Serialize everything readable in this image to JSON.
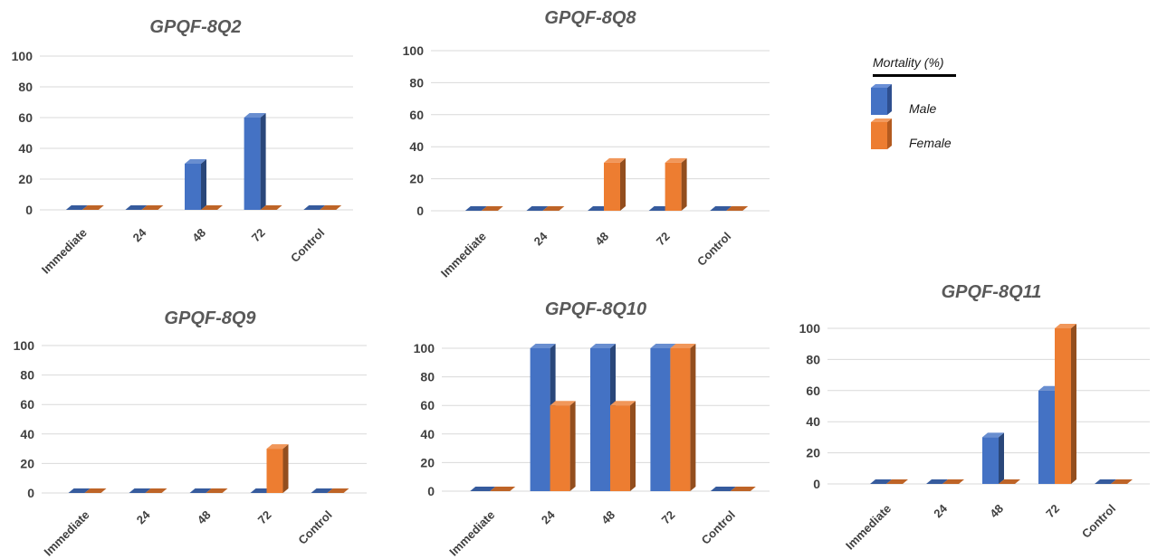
{
  "colors": {
    "male": "#4472C4",
    "female": "#ED7D31"
  },
  "legend": {
    "title": "Mortality (%)",
    "male_label": "Male",
    "female_label": "Female"
  },
  "chart_data": [
    {
      "type": "bar",
      "title": "GPQF-8Q2",
      "categories": [
        "Immediate",
        "24",
        "48",
        "72",
        "Control"
      ],
      "series": [
        {
          "name": "Male",
          "values": [
            0,
            0,
            30,
            60,
            0
          ]
        },
        {
          "name": "Female",
          "values": [
            0,
            0,
            0,
            0,
            0
          ]
        }
      ],
      "ylim": [
        0,
        100
      ],
      "yticks": [
        0,
        20,
        40,
        60,
        80,
        100
      ]
    },
    {
      "type": "bar",
      "title": "GPQF-8Q8",
      "categories": [
        "Immediate",
        "24",
        "48",
        "72",
        "Control"
      ],
      "series": [
        {
          "name": "Male",
          "values": [
            0,
            0,
            0,
            0,
            0
          ]
        },
        {
          "name": "Female",
          "values": [
            0,
            0,
            30,
            30,
            0
          ]
        }
      ],
      "ylim": [
        0,
        100
      ],
      "yticks": [
        0,
        20,
        40,
        60,
        80,
        100
      ]
    },
    {
      "type": "bar",
      "title": "GPQF-8Q9",
      "categories": [
        "Immediate",
        "24",
        "48",
        "72",
        "Control"
      ],
      "series": [
        {
          "name": "Male",
          "values": [
            0,
            0,
            0,
            0,
            0
          ]
        },
        {
          "name": "Female",
          "values": [
            0,
            0,
            0,
            30,
            0
          ]
        }
      ],
      "ylim": [
        0,
        100
      ],
      "yticks": [
        0,
        20,
        40,
        60,
        80,
        100
      ]
    },
    {
      "type": "bar",
      "title": "GPQF-8Q10",
      "categories": [
        "Immediate",
        "24",
        "48",
        "72",
        "Control"
      ],
      "series": [
        {
          "name": "Male",
          "values": [
            0,
            100,
            100,
            100,
            0
          ]
        },
        {
          "name": "Female",
          "values": [
            0,
            60,
            60,
            100,
            0
          ]
        }
      ],
      "ylim": [
        0,
        100
      ],
      "yticks": [
        0,
        20,
        40,
        60,
        80,
        100
      ]
    },
    {
      "type": "bar",
      "title": "GPQF-8Q11",
      "categories": [
        "Immediate",
        "24",
        "48",
        "72",
        "Control"
      ],
      "series": [
        {
          "name": "Male",
          "values": [
            0,
            0,
            30,
            60,
            0
          ]
        },
        {
          "name": "Female",
          "values": [
            0,
            0,
            0,
            100,
            0
          ]
        }
      ],
      "ylim": [
        0,
        100
      ],
      "yticks": [
        0,
        20,
        40,
        60,
        80,
        100
      ]
    }
  ]
}
